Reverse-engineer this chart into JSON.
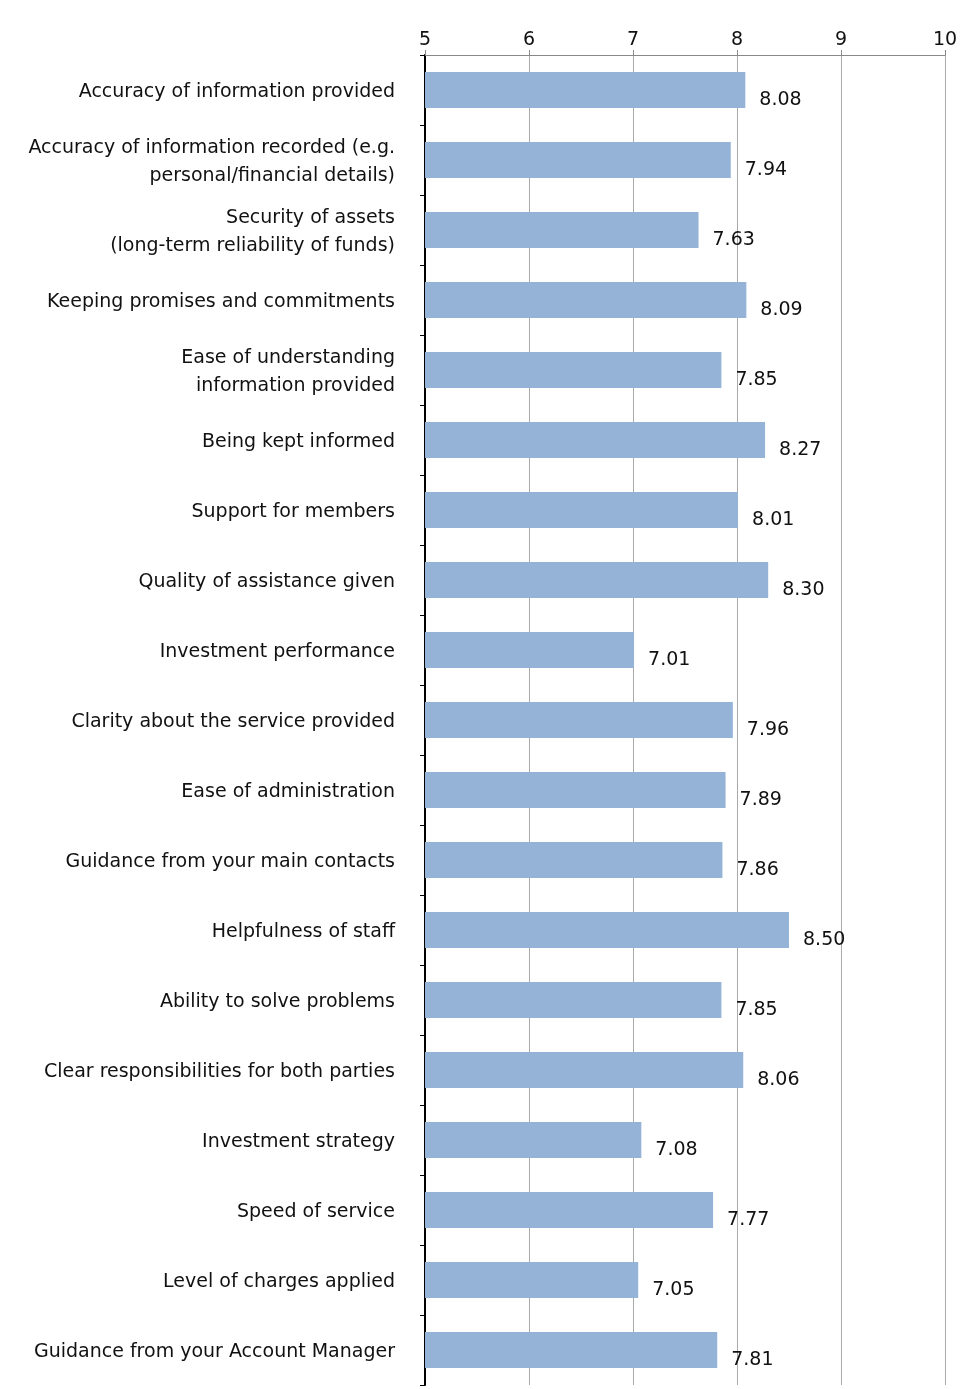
{
  "chart_data": {
    "type": "bar",
    "orientation": "horizontal",
    "categories": [
      "Accuracy of information provided",
      "Accuracy of information recorded (e.g.\npersonal/financial details)",
      "Security of assets\n(long-term reliability of funds)",
      "Keeping promises and commitments",
      "Ease of understanding\ninformation provided",
      "Being kept informed",
      "Support for members",
      "Quality of assistance given",
      "Investment performance",
      "Clarity about the service provided",
      "Ease of administration",
      "Guidance from your main contacts",
      "Helpfulness of staff",
      "Ability to solve problems",
      "Clear responsibilities for both parties",
      "Investment strategy",
      "Speed of service",
      "Level of charges applied",
      "Guidance from your Account Manager"
    ],
    "values": [
      8.08,
      7.94,
      7.63,
      8.09,
      7.85,
      8.27,
      8.01,
      8.3,
      7.01,
      7.96,
      7.89,
      7.86,
      8.5,
      7.85,
      8.06,
      7.08,
      7.77,
      7.05,
      7.81
    ],
    "value_labels": [
      "8.08",
      "7.94",
      "7.63",
      "8.09",
      "7.85",
      "8.27",
      "8.01",
      "8.30",
      "7.01",
      "7.96",
      "7.89",
      "7.86",
      "8.50",
      "7.85",
      "8.06",
      "7.08",
      "7.77",
      "7.05",
      "7.81"
    ],
    "color": "#95b3d7",
    "xlim": [
      5,
      10
    ],
    "xticks": [
      5,
      6,
      7,
      8,
      9,
      10
    ],
    "grid": "x"
  }
}
